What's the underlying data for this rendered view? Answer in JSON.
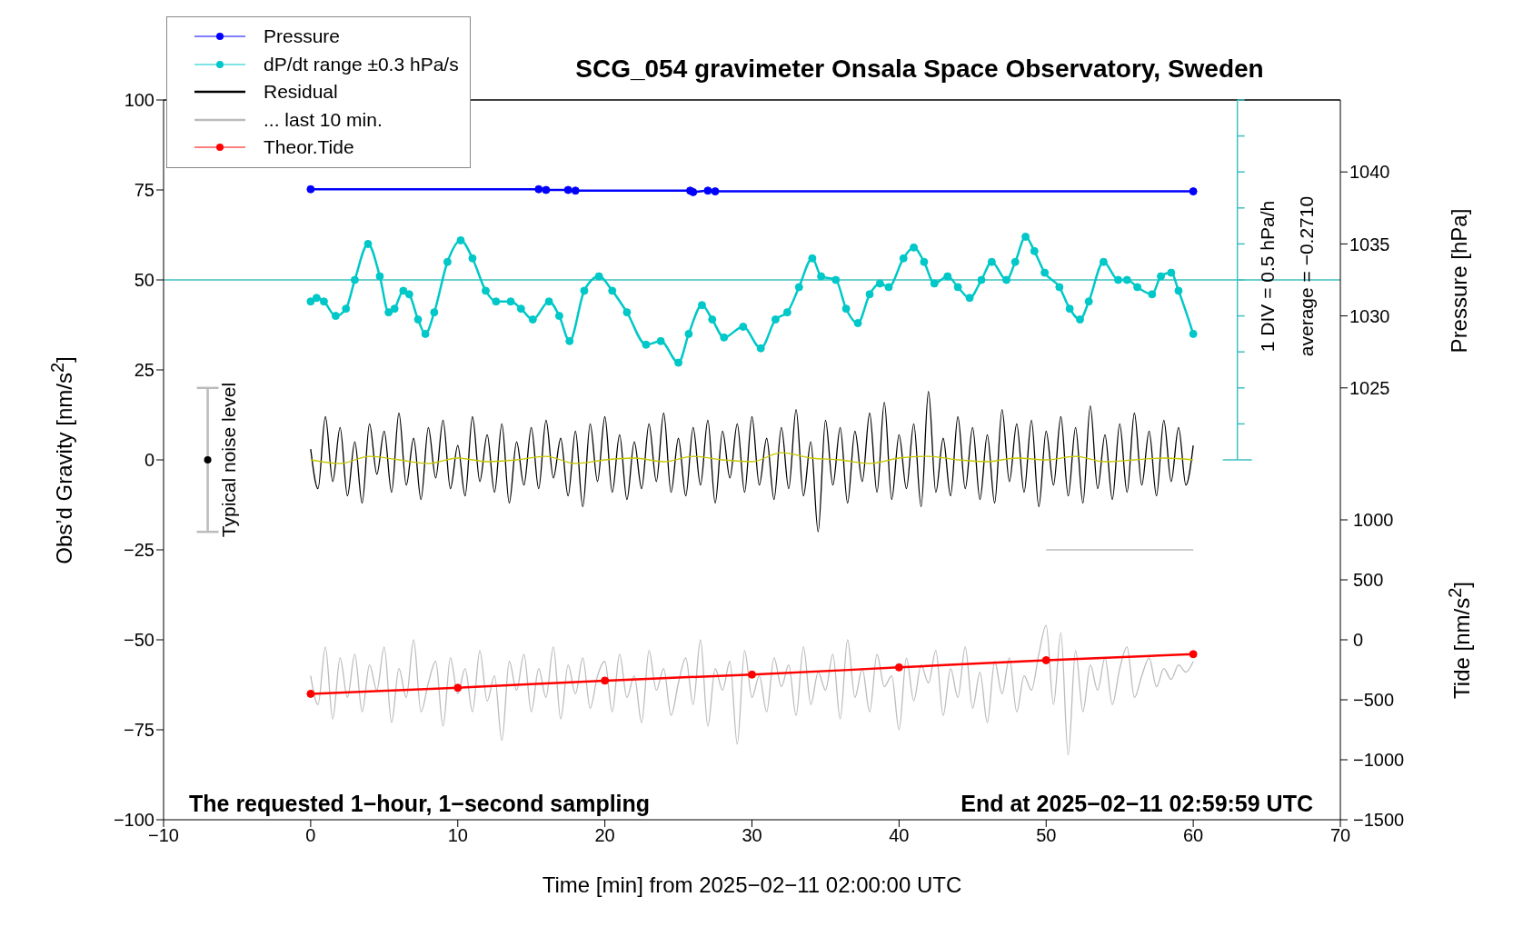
{
  "chart_data": {
    "type": "line",
    "title": "SCG_054 gravimeter Onsala Space Observatory, Sweden",
    "xlabel": "Time [min] from 2025−02−11 02:00:00 UTC",
    "ylabel": "Obs’d Gravity [nm/s$^{2}$]",
    "y2label": "Pressure [hPa]",
    "y3label": "Tide [nm/s$^{2}$]",
    "xlim": [
      -10,
      70
    ],
    "xticks": [
      -10,
      0,
      10,
      20,
      30,
      40,
      50,
      60,
      70
    ],
    "ylim": [
      -100,
      100
    ],
    "yticks": [
      -100,
      -75,
      -50,
      -25,
      0,
      25,
      50,
      75,
      100
    ],
    "y2lim": [
      995,
      1045
    ],
    "y2ticks": [
      1025,
      1030,
      1035,
      1040
    ],
    "y3lim": [
      -1500,
      4500
    ],
    "y3ticks": [
      -1500,
      -1000,
      -500,
      0,
      500,
      1000
    ],
    "legend": "top left",
    "annotations": [
      "The requested 1−hour, 1−second sampling",
      "End at 2025−02−11 02:59:59 UTC",
      "1 DIV = 0.5 hPa/h",
      "average = −0.2710",
      "Typical noise level"
    ],
    "ref_lines": [
      {
        "axis": "y",
        "value": 50,
        "color": "#40c0c0"
      }
    ],
    "x": [
      0,
      0.5,
      1,
      1.5,
      2,
      2.5,
      3,
      3.5,
      4,
      4.5,
      5,
      5.5,
      6,
      6.5,
      7,
      7.5,
      8,
      8.5,
      9,
      9.5,
      10,
      10.5,
      11,
      11.5,
      12,
      12.5,
      13,
      13.5,
      14,
      14.5,
      15,
      15.5,
      16,
      16.5,
      17,
      17.5,
      18,
      18.5,
      19,
      19.5,
      20,
      20.5,
      21,
      21.5,
      22,
      22.5,
      23,
      23.5,
      24,
      24.5,
      25,
      25.5,
      26,
      26.5,
      27,
      27.5,
      28,
      28.5,
      29,
      29.5,
      30,
      30.5,
      31,
      31.5,
      32,
      32.5,
      33,
      33.5,
      34,
      34.5,
      35,
      35.5,
      36,
      36.5,
      37,
      37.5,
      38,
      38.5,
      39,
      39.5,
      40,
      40.5,
      41,
      41.5,
      42,
      42.5,
      43,
      43.5,
      44,
      44.5,
      45,
      45.5,
      46,
      46.5,
      47,
      47.5,
      48,
      48.5,
      49,
      49.5,
      50,
      50.5,
      51,
      51.5,
      52,
      52.5,
      53,
      53.5,
      54,
      54.5,
      55,
      55.5,
      56,
      56.5,
      57,
      57.5,
      58,
      58.5,
      59,
      59.5,
      60
    ],
    "series": [
      {
        "name": "Pressure",
        "color": "#0000ff",
        "axis": "y2",
        "marker": "circle",
        "x": [
          0,
          15.5,
          16,
          17.5,
          18,
          25.8,
          26,
          27,
          27.5,
          60
        ],
        "values": [
          1038.8,
          1038.8,
          1038.75,
          1038.75,
          1038.7,
          1038.7,
          1038.6,
          1038.7,
          1038.65,
          1038.65
        ]
      },
      {
        "name": "dP/dt range ±0.3 hPa/s",
        "color": "#00c8c8",
        "marker": "circle",
        "x": [
          0,
          0.4,
          0.9,
          1.7,
          2.4,
          3.0,
          3.9,
          4.7,
          5.3,
          5.7,
          6.3,
          6.7,
          7.3,
          7.8,
          8.4,
          9.3,
          10.2,
          11.0,
          11.9,
          12.6,
          13.6,
          14.3,
          15.1,
          16.2,
          16.9,
          17.6,
          18.6,
          19.6,
          20.5,
          21.5,
          22.8,
          23.8,
          25.0,
          25.7,
          26.6,
          27.3,
          28.1,
          29.4,
          30.6,
          31.6,
          32.4,
          33.2,
          34.1,
          34.7,
          35.7,
          36.4,
          37.2,
          38.0,
          38.7,
          39.3,
          40.3,
          41.0,
          41.7,
          42.4,
          43.3,
          44.0,
          44.8,
          45.6,
          46.3,
          47.3,
          47.9,
          48.6,
          49.2,
          49.9,
          50.9,
          51.6,
          52.3,
          52.9,
          53.9,
          54.9,
          55.5,
          56.2,
          57.2,
          57.8,
          58.5,
          59.0,
          60.0
        ],
        "values": [
          44,
          45,
          44,
          40,
          42,
          50,
          60,
          51,
          41,
          42,
          47,
          46,
          39,
          35,
          41,
          55,
          61,
          56,
          47,
          44,
          44,
          42,
          39,
          44,
          40,
          33,
          47,
          51,
          47,
          41,
          32,
          33,
          27,
          35,
          43,
          39,
          34,
          37,
          31,
          39,
          41,
          48,
          56,
          51,
          50,
          42,
          38,
          46,
          49,
          48,
          56,
          59,
          55,
          49,
          51,
          48,
          45,
          50,
          55,
          50,
          55,
          62,
          58,
          52,
          48,
          42,
          39,
          44,
          55,
          50,
          50,
          48,
          46,
          51,
          52,
          47,
          35
        ]
      },
      {
        "name": "Residual",
        "color": "#000000",
        "values": [
          3,
          -8,
          12,
          -6,
          9,
          -10,
          5,
          -12,
          10,
          -4,
          8,
          -9,
          13,
          -7,
          6,
          -11,
          9,
          -5,
          11,
          -8,
          4,
          -10,
          12,
          -6,
          7,
          -9,
          10,
          -12,
          5,
          -7,
          9,
          -8,
          11,
          -5,
          6,
          -10,
          8,
          -13,
          10,
          -6,
          12,
          -9,
          7,
          -11,
          5,
          -8,
          10,
          -6,
          13,
          -9,
          6,
          -10,
          9,
          -7,
          11,
          -12,
          8,
          -5,
          10,
          -9,
          12,
          -7,
          6,
          -11,
          9,
          -8,
          14,
          -10,
          5,
          -20,
          11,
          -7,
          9,
          -12,
          8,
          -6,
          13,
          -9,
          16,
          -11,
          7,
          -8,
          10,
          -13,
          19,
          -9,
          6,
          -10,
          12,
          -8,
          9,
          -11,
          7,
          -12,
          14,
          -6,
          10,
          -9,
          11,
          -13,
          8,
          -7,
          12,
          -10,
          9,
          -12,
          15,
          -8,
          7,
          -11,
          10,
          -9,
          13,
          -7,
          8,
          -10,
          11,
          -6,
          9,
          -7,
          4
        ]
      },
      {
        "color": "#c8c800",
        "x": [
          0,
          2,
          4,
          6,
          8,
          10,
          12,
          14,
          16,
          18,
          20,
          22,
          24,
          26,
          28,
          30,
          32,
          34,
          36,
          38,
          40,
          42,
          44,
          46,
          48,
          50,
          52,
          54,
          56,
          58,
          60
        ],
        "values": [
          0,
          -1,
          1,
          0,
          -1,
          0.5,
          -0.5,
          0,
          1,
          -1,
          0,
          0.5,
          -0.5,
          1,
          0,
          -0.5,
          2,
          0.5,
          0,
          -1,
          0.5,
          1,
          0,
          -0.5,
          0.5,
          0,
          1,
          -0.5,
          0,
          0.5,
          0
        ]
      },
      {
        "name": "... last 10 min.",
        "color": "#bbbbbb",
        "values": [
          -60,
          -68,
          -52,
          -72,
          -55,
          -66,
          -54,
          -70,
          -57,
          -64,
          -52,
          -73,
          -58,
          -66,
          -50,
          -70,
          -62,
          -56,
          -74,
          -55,
          -65,
          -58,
          -70,
          -53,
          -67,
          -60,
          -78,
          -56,
          -64,
          -54,
          -70,
          -58,
          -66,
          -52,
          -72,
          -57,
          -65,
          -55,
          -69,
          -60,
          -56,
          -70,
          -54,
          -66,
          -60,
          -73,
          -53,
          -64,
          -58,
          -71,
          -62,
          -55,
          -68,
          -50,
          -74,
          -58,
          -64,
          -56,
          -79,
          -53,
          -66,
          -60,
          -70,
          -55,
          -63,
          -57,
          -71,
          -52,
          -68,
          -59,
          -64,
          -54,
          -72,
          -50,
          -66,
          -58,
          -70,
          -54,
          -63,
          -60,
          -75,
          -55,
          -67,
          -57,
          -62,
          -53,
          -71,
          -58,
          -66,
          -52,
          -69,
          -59,
          -73,
          -56,
          -65,
          -55,
          -70,
          -60,
          -64,
          -54,
          -46,
          -68,
          -48,
          -82,
          -53,
          -70,
          -57,
          -64,
          -55,
          -68,
          -58,
          -52,
          -66,
          -60,
          -55,
          -63,
          -58,
          -61,
          -57,
          -59,
          -56
        ]
      },
      {
        "color": "#bbbbbb",
        "x": [
          50,
          60
        ],
        "values": [
          -25,
          -25
        ]
      },
      {
        "name": "Theor.Tide",
        "color": "#ff0000",
        "axis": "y3",
        "marker": "circle",
        "x": [
          0,
          10,
          20,
          30,
          40,
          50,
          60
        ],
        "values": [
          -450,
          -400,
          -340,
          -290,
          -230,
          -170,
          -120
        ]
      },
      {
        "type": "scatter",
        "color": "#000000",
        "x": [
          -7
        ],
        "values": [
          0
        ],
        "errors": [
          20
        ]
      }
    ]
  }
}
